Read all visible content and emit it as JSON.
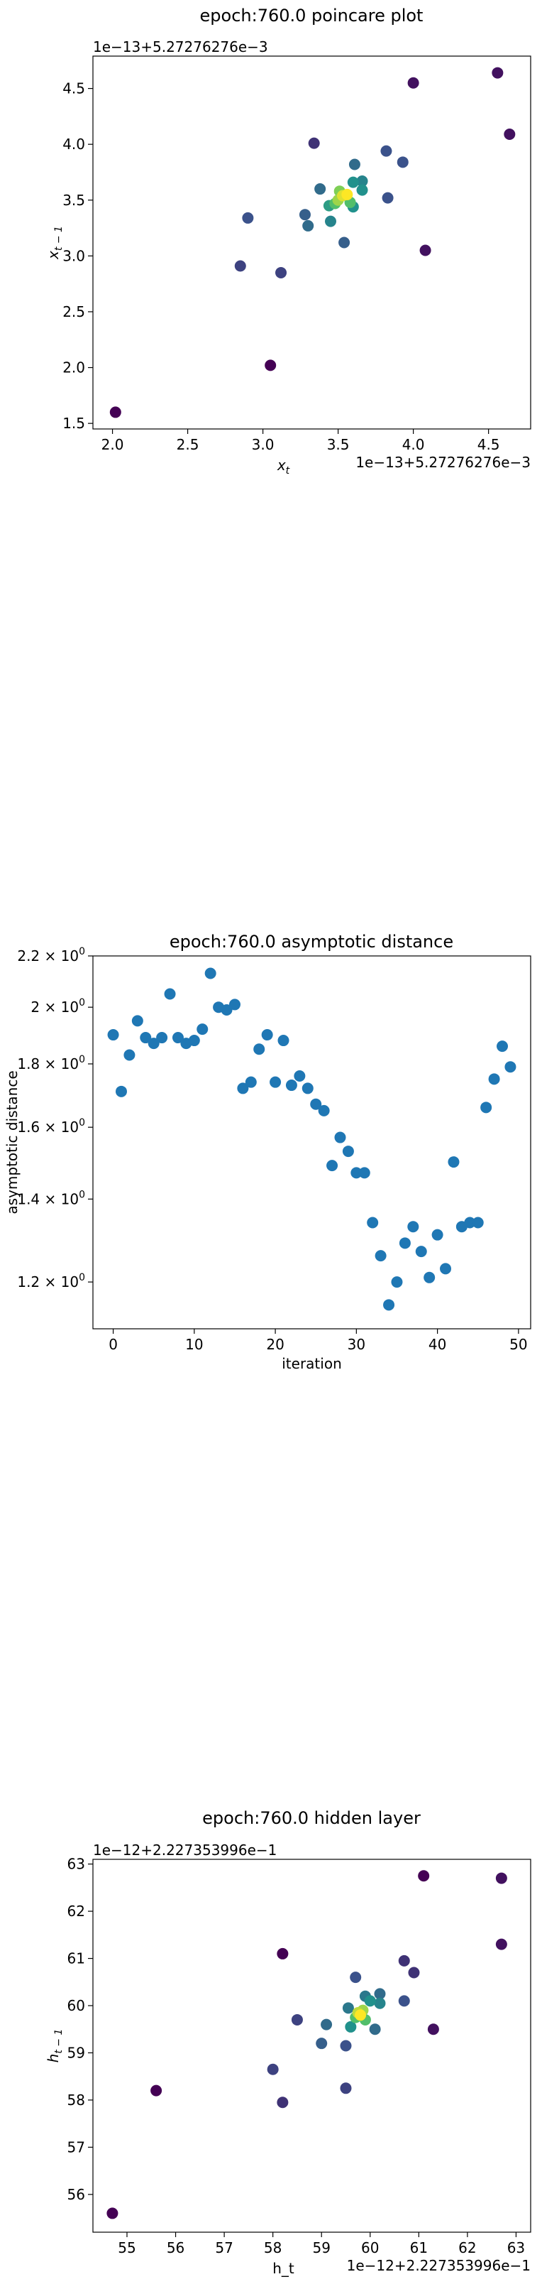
{
  "chart_data": [
    {
      "id": "poincare",
      "type": "scatter",
      "title": "epoch:760.0 poincare plot",
      "xlabel_main": "x",
      "xlabel_sub": "t",
      "ylabel_main": "x",
      "ylabel_sub": "t − 1",
      "x_offset_text": "1e−13+5.27276276e−3",
      "y_offset_text": "1e−13+5.27276276e−3",
      "xlim": [
        1.87,
        4.78
      ],
      "ylim": [
        1.45,
        4.79
      ],
      "xticks": [
        2.0,
        2.5,
        3.0,
        3.5,
        4.0,
        4.5
      ],
      "xtick_labels": [
        "2.0",
        "2.5",
        "3.0",
        "3.5",
        "4.0",
        "4.5"
      ],
      "yticks": [
        1.5,
        2.0,
        2.5,
        3.0,
        3.5,
        4.0,
        4.5
      ],
      "ytick_labels": [
        "1.5",
        "2.0",
        "2.5",
        "3.0",
        "3.5",
        "4.0",
        "4.5"
      ],
      "colormap": [
        "#440154",
        "#3b528b",
        "#21918c",
        "#5ec962",
        "#fde725"
      ],
      "points": [
        [
          2.02,
          1.6,
          0.0
        ],
        [
          3.05,
          2.02,
          0.0
        ],
        [
          2.85,
          2.91,
          0.2
        ],
        [
          3.12,
          2.85,
          0.2
        ],
        [
          2.9,
          3.34,
          0.25
        ],
        [
          3.28,
          3.37,
          0.3
        ],
        [
          3.3,
          3.27,
          0.35
        ],
        [
          3.38,
          3.6,
          0.35
        ],
        [
          3.34,
          4.01,
          0.15
        ],
        [
          3.54,
          3.12,
          0.3
        ],
        [
          3.45,
          3.31,
          0.45
        ],
        [
          3.44,
          3.45,
          0.55
        ],
        [
          3.48,
          3.47,
          0.7
        ],
        [
          3.5,
          3.5,
          0.85
        ],
        [
          3.53,
          3.54,
          0.95
        ],
        [
          3.56,
          3.55,
          1.0
        ],
        [
          3.51,
          3.58,
          0.8
        ],
        [
          3.58,
          3.48,
          0.7
        ],
        [
          3.6,
          3.44,
          0.5
        ],
        [
          3.6,
          3.66,
          0.5
        ],
        [
          3.66,
          3.67,
          0.45
        ],
        [
          3.66,
          3.59,
          0.5
        ],
        [
          3.61,
          3.82,
          0.35
        ],
        [
          3.82,
          3.94,
          0.25
        ],
        [
          3.83,
          3.52,
          0.25
        ],
        [
          3.93,
          3.84,
          0.25
        ],
        [
          4.0,
          4.55,
          0.05
        ],
        [
          4.08,
          3.05,
          0.05
        ],
        [
          4.56,
          4.64,
          0.05
        ],
        [
          4.64,
          4.09,
          0.05
        ]
      ]
    },
    {
      "id": "asymptotic",
      "type": "scatter",
      "title": "epoch:760.0 asymptotic distance",
      "xlabel": "iteration",
      "ylabel": "asymptotic distance",
      "log_y": true,
      "xlim": [
        -2.5,
        51.5
      ],
      "ylim": [
        1.1,
        2.2
      ],
      "xticks": [
        0,
        10,
        20,
        30,
        40,
        50
      ],
      "xtick_labels": [
        "0",
        "10",
        "20",
        "30",
        "40",
        "50"
      ],
      "yticks": [
        1.2,
        1.4,
        1.6,
        1.8,
        2.0,
        2.2
      ],
      "ytick_base": [
        "1.2 × 10",
        "1.4 × 10",
        "1.6 × 10",
        "1.8 × 10",
        "2 × 10",
        "2.2 × 10"
      ],
      "ytick_exp": "0",
      "color": "#1f77b4",
      "x": [
        0,
        1,
        2,
        3,
        4,
        5,
        6,
        7,
        8,
        9,
        10,
        11,
        12,
        13,
        14,
        15,
        16,
        17,
        18,
        19,
        20,
        21,
        22,
        23,
        24,
        25,
        26,
        27,
        28,
        29,
        30,
        31,
        32,
        33,
        34,
        35,
        36,
        37,
        38,
        39,
        40,
        41,
        42,
        43,
        44,
        45,
        46,
        47,
        48,
        49
      ],
      "y": [
        1.9,
        1.71,
        1.83,
        1.95,
        1.89,
        1.87,
        1.89,
        2.05,
        1.89,
        1.87,
        1.88,
        1.92,
        2.13,
        2.0,
        1.99,
        2.01,
        1.72,
        1.74,
        1.85,
        1.9,
        1.74,
        1.88,
        1.73,
        1.76,
        1.72,
        1.67,
        1.65,
        1.49,
        1.57,
        1.53,
        1.47,
        1.47,
        1.34,
        1.26,
        1.15,
        1.2,
        1.29,
        1.33,
        1.27,
        1.21,
        1.31,
        1.23,
        1.5,
        1.33,
        1.34,
        1.34,
        1.66,
        1.75,
        1.86,
        1.79
      ]
    },
    {
      "id": "hidden",
      "type": "scatter",
      "title": "epoch:760.0 hidden layer",
      "xlabel": "h_t",
      "ylabel_main": "h",
      "ylabel_sub": "t − 1",
      "x_offset_text": "1e−12+2.227353996e−1",
      "y_offset_text": "1e−12+2.227353996e−1",
      "xlim": [
        54.3,
        63.3
      ],
      "ylim": [
        55.2,
        63.1
      ],
      "xticks": [
        55,
        56,
        57,
        58,
        59,
        60,
        61,
        62,
        63
      ],
      "xtick_labels": [
        "55",
        "56",
        "57",
        "58",
        "59",
        "60",
        "61",
        "62",
        "63"
      ],
      "yticks": [
        56,
        57,
        58,
        59,
        60,
        61,
        62,
        63
      ],
      "ytick_labels": [
        "56",
        "57",
        "58",
        "59",
        "60",
        "61",
        "62",
        "63"
      ],
      "colormap": [
        "#440154",
        "#3b528b",
        "#21918c",
        "#5ec962",
        "#fde725"
      ],
      "points": [
        [
          54.7,
          55.6,
          0.0
        ],
        [
          55.6,
          58.2,
          0.0
        ],
        [
          58.0,
          58.65,
          0.2
        ],
        [
          58.2,
          57.95,
          0.15
        ],
        [
          58.2,
          61.1,
          0.0
        ],
        [
          58.5,
          59.7,
          0.2
        ],
        [
          59.0,
          59.2,
          0.3
        ],
        [
          59.1,
          59.6,
          0.35
        ],
        [
          59.5,
          59.15,
          0.25
        ],
        [
          59.5,
          58.25,
          0.2
        ],
        [
          59.55,
          59.95,
          0.4
        ],
        [
          59.6,
          59.55,
          0.5
        ],
        [
          59.7,
          59.75,
          0.7
        ],
        [
          59.75,
          59.85,
          0.9
        ],
        [
          59.8,
          59.8,
          1.0
        ],
        [
          59.85,
          59.9,
          0.85
        ],
        [
          59.9,
          59.7,
          0.7
        ],
        [
          60.0,
          60.1,
          0.5
        ],
        [
          59.9,
          60.2,
          0.4
        ],
        [
          60.1,
          59.5,
          0.35
        ],
        [
          60.2,
          60.05,
          0.45
        ],
        [
          60.2,
          60.25,
          0.35
        ],
        [
          59.7,
          60.6,
          0.25
        ],
        [
          60.7,
          60.1,
          0.25
        ],
        [
          60.7,
          60.95,
          0.15
        ],
        [
          60.9,
          60.7,
          0.15
        ],
        [
          61.1,
          62.75,
          0.0
        ],
        [
          61.3,
          59.5,
          0.05
        ],
        [
          62.7,
          62.7,
          0.05
        ],
        [
          62.7,
          61.3,
          0.05
        ]
      ]
    }
  ]
}
